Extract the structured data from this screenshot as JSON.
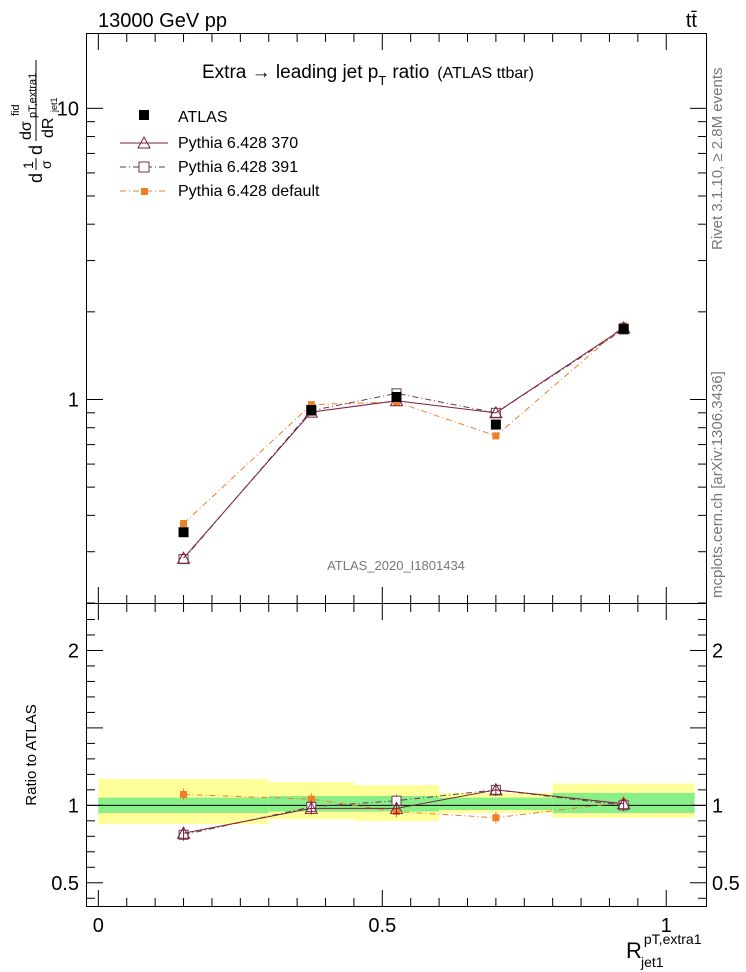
{
  "header": {
    "energy": "13000 GeV pp",
    "process": "tt̄"
  },
  "side_labels": {
    "rivet": "Rivet 3.1.10, ≥ 2.8M events",
    "mcplots": "mcplots.cern.ch [arXiv:1306.3436]"
  },
  "analysis_id": "ATLAS_2020_I1801434",
  "colors": {
    "atlas": "#000000",
    "p370": "#7a1f3d",
    "p391": "#6b3650",
    "pdef": "#f07e26",
    "band_yellow": "#ffff99",
    "band_green": "#88ee88"
  },
  "chart_data": [
    {
      "type": "line",
      "panel": "main",
      "title": "Extra → leading jet p_T ratio",
      "title_parts": {
        "main": "Extra → leading jet p",
        "sub": "T",
        "after": "ratio",
        "small": "(ATLAS ttbar)"
      },
      "ylabel": "1/σ dσ^fid_{pT,extra1} / dR_{jet1}",
      "ylabel_parts": {
        "a": "d",
        "b": "1",
        "c": "σ",
        "d": "d",
        "e": "dσ",
        "f": "fid",
        "g": "pT,extra1",
        "h": "dR",
        "i": "jet1"
      },
      "yscale": "log",
      "ylim": [
        0.2,
        18
      ],
      "xlim": [
        -0.02,
        1.07
      ],
      "y_ticks": [
        {
          "v": 1,
          "label": "1"
        },
        {
          "v": 10,
          "label": "10"
        }
      ],
      "legend_position": "top-left",
      "x": [
        0.15,
        0.375,
        0.525,
        0.7,
        0.925
      ],
      "series": [
        {
          "name": "ATLAS",
          "key": "atlas",
          "marker": "square-filled",
          "values": [
            0.35,
            0.92,
            1.02,
            0.82,
            1.75
          ]
        },
        {
          "name": "Pythia 6.428 370",
          "key": "p370",
          "marker": "triangle-open",
          "line": "solid",
          "values": [
            0.285,
            0.905,
            0.99,
            0.9,
            1.76
          ]
        },
        {
          "name": "Pythia 6.428 391",
          "key": "p391",
          "marker": "square-open",
          "line": "dashdot",
          "values": [
            0.283,
            0.915,
            1.05,
            0.9,
            1.74
          ]
        },
        {
          "name": "Pythia 6.428 default",
          "key": "pdef",
          "marker": "square-filled-small",
          "line": "dashdot",
          "values": [
            0.375,
            0.96,
            0.98,
            0.75,
            1.79
          ]
        }
      ]
    },
    {
      "type": "line",
      "panel": "ratio",
      "ylabel": "Ratio to ATLAS",
      "xlabel": "R_jet1^{pT,extra1}",
      "xlabel_parts": {
        "main": "R",
        "sup": "pT,extra1",
        "sub": "jet1"
      },
      "ylim": [
        0.35,
        2.3
      ],
      "xlim": [
        -0.02,
        1.07
      ],
      "x_ticks": [
        {
          "v": 0,
          "label": "0"
        },
        {
          "v": 0.5,
          "label": "0.5"
        },
        {
          "v": 1,
          "label": "1"
        }
      ],
      "y_ticks": [
        {
          "v": 0.5,
          "label": "0.5"
        },
        {
          "v": 1,
          "label": "1"
        },
        {
          "v": 2,
          "label": "2"
        }
      ],
      "bins": [
        [
          0,
          0.3
        ],
        [
          0.3,
          0.45
        ],
        [
          0.45,
          0.6
        ],
        [
          0.6,
          0.8
        ],
        [
          0.8,
          1.05
        ]
      ],
      "band_total": [
        [
          0.88,
          1.17
        ],
        [
          0.91,
          1.15
        ],
        [
          0.9,
          1.13
        ],
        [
          0.95,
          1.08
        ],
        [
          0.92,
          1.14
        ]
      ],
      "band_stat": [
        [
          0.95,
          1.05
        ],
        [
          0.96,
          1.06
        ],
        [
          0.96,
          1.06
        ],
        [
          0.97,
          1.05
        ],
        [
          0.95,
          1.08
        ]
      ],
      "x": [
        0.15,
        0.375,
        0.525,
        0.7,
        0.925
      ],
      "series": [
        {
          "name": "Pythia 6.428 370",
          "key": "p370",
          "values": [
            0.82,
            0.98,
            0.98,
            1.1,
            1.01
          ]
        },
        {
          "name": "Pythia 6.428 391",
          "key": "p391",
          "values": [
            0.81,
            0.99,
            1.03,
            1.1,
            1.0
          ]
        },
        {
          "name": "Pythia 6.428 default",
          "key": "pdef",
          "values": [
            1.07,
            1.04,
            0.96,
            0.92,
            1.02
          ]
        }
      ]
    }
  ]
}
